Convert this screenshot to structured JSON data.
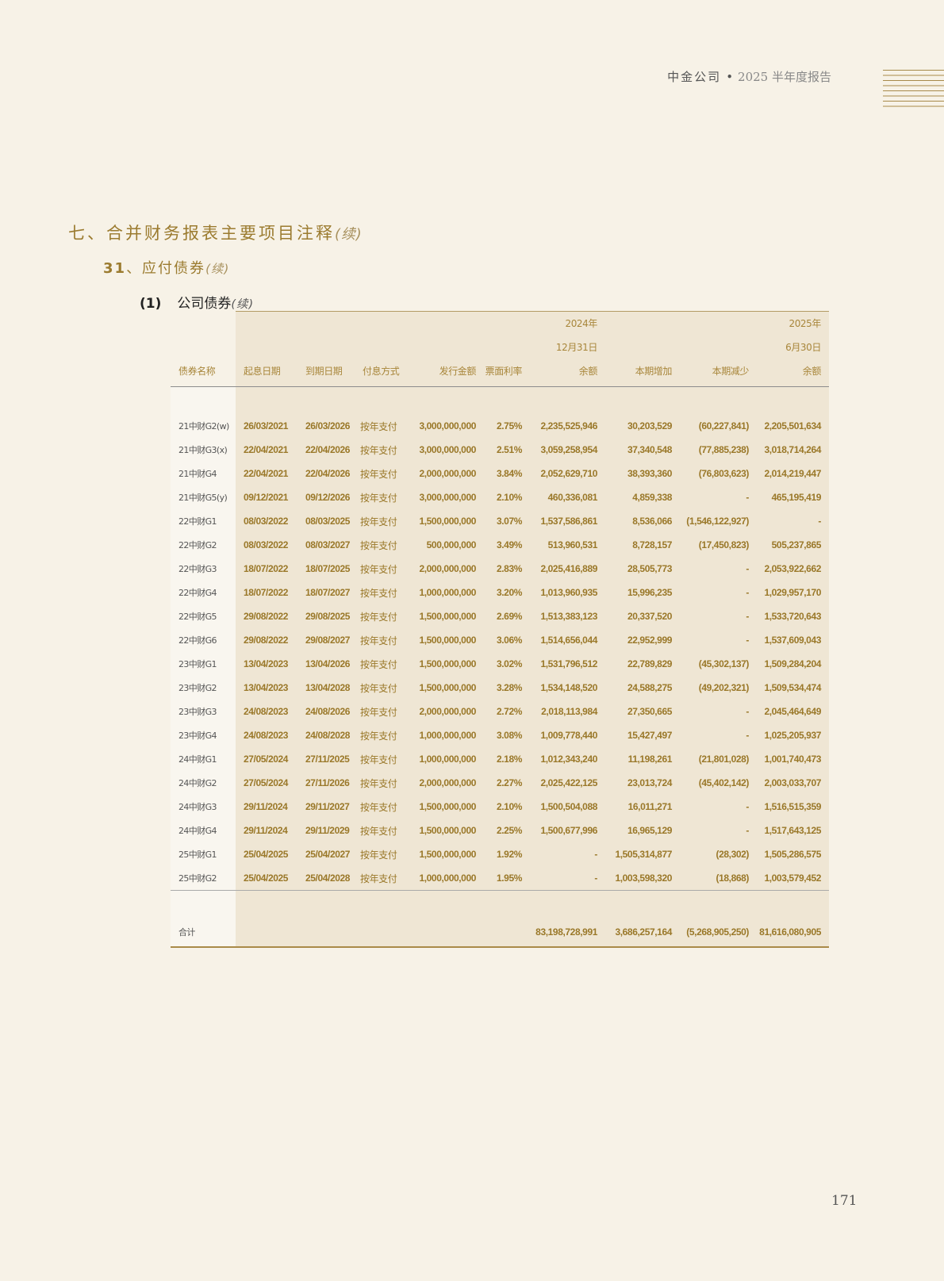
{
  "running_header": {
    "company": "中金公司",
    "separator": "•",
    "report": "2025 半年度报告"
  },
  "headings": {
    "h1": {
      "text": "七、合并财务报表主要项目注释",
      "cont": "(续)"
    },
    "h2": {
      "num": "31",
      "text": "、应付债券",
      "cont": "(续)"
    },
    "h3": {
      "num": "(1)",
      "text": "公司债券",
      "cont": "(续)"
    }
  },
  "table": {
    "headers": {
      "name": "债券名称",
      "start": "起息日期",
      "end": "到期日期",
      "method": "付息方式",
      "issue": "发行金额",
      "rate": "票面利率",
      "bal_2024": [
        "2024年",
        "12月31日",
        "余额"
      ],
      "increase": "本期增加",
      "decrease": "本期减少",
      "bal_2025": [
        "2025年",
        "6月30日",
        "余额"
      ]
    },
    "rows": [
      [
        "21中财G2(w)",
        "26/03/2021",
        "26/03/2026",
        "按年支付",
        "3,000,000,000",
        "2.75%",
        "2,235,525,946",
        "30,203,529",
        "(60,227,841)",
        "2,205,501,634"
      ],
      [
        "21中财G3(x)",
        "22/04/2021",
        "22/04/2026",
        "按年支付",
        "3,000,000,000",
        "2.51%",
        "3,059,258,954",
        "37,340,548",
        "(77,885,238)",
        "3,018,714,264"
      ],
      [
        "21中财G4",
        "22/04/2021",
        "22/04/2026",
        "按年支付",
        "2,000,000,000",
        "3.84%",
        "2,052,629,710",
        "38,393,360",
        "(76,803,623)",
        "2,014,219,447"
      ],
      [
        "21中财G5(y)",
        "09/12/2021",
        "09/12/2026",
        "按年支付",
        "3,000,000,000",
        "2.10%",
        "460,336,081",
        "4,859,338",
        "-",
        "465,195,419"
      ],
      [
        "22中财G1",
        "08/03/2022",
        "08/03/2025",
        "按年支付",
        "1,500,000,000",
        "3.07%",
        "1,537,586,861",
        "8,536,066",
        "(1,546,122,927)",
        "-"
      ],
      [
        "22中财G2",
        "08/03/2022",
        "08/03/2027",
        "按年支付",
        "500,000,000",
        "3.49%",
        "513,960,531",
        "8,728,157",
        "(17,450,823)",
        "505,237,865"
      ],
      [
        "22中财G3",
        "18/07/2022",
        "18/07/2025",
        "按年支付",
        "2,000,000,000",
        "2.83%",
        "2,025,416,889",
        "28,505,773",
        "-",
        "2,053,922,662"
      ],
      [
        "22中财G4",
        "18/07/2022",
        "18/07/2027",
        "按年支付",
        "1,000,000,000",
        "3.20%",
        "1,013,960,935",
        "15,996,235",
        "-",
        "1,029,957,170"
      ],
      [
        "22中财G5",
        "29/08/2022",
        "29/08/2025",
        "按年支付",
        "1,500,000,000",
        "2.69%",
        "1,513,383,123",
        "20,337,520",
        "-",
        "1,533,720,643"
      ],
      [
        "22中财G6",
        "29/08/2022",
        "29/08/2027",
        "按年支付",
        "1,500,000,000",
        "3.06%",
        "1,514,656,044",
        "22,952,999",
        "-",
        "1,537,609,043"
      ],
      [
        "23中财G1",
        "13/04/2023",
        "13/04/2026",
        "按年支付",
        "1,500,000,000",
        "3.02%",
        "1,531,796,512",
        "22,789,829",
        "(45,302,137)",
        "1,509,284,204"
      ],
      [
        "23中财G2",
        "13/04/2023",
        "13/04/2028",
        "按年支付",
        "1,500,000,000",
        "3.28%",
        "1,534,148,520",
        "24,588,275",
        "(49,202,321)",
        "1,509,534,474"
      ],
      [
        "23中财G3",
        "24/08/2023",
        "24/08/2026",
        "按年支付",
        "2,000,000,000",
        "2.72%",
        "2,018,113,984",
        "27,350,665",
        "-",
        "2,045,464,649"
      ],
      [
        "23中财G4",
        "24/08/2023",
        "24/08/2028",
        "按年支付",
        "1,000,000,000",
        "3.08%",
        "1,009,778,440",
        "15,427,497",
        "-",
        "1,025,205,937"
      ],
      [
        "24中财G1",
        "27/05/2024",
        "27/11/2025",
        "按年支付",
        "1,000,000,000",
        "2.18%",
        "1,012,343,240",
        "11,198,261",
        "(21,801,028)",
        "1,001,740,473"
      ],
      [
        "24中财G2",
        "27/05/2024",
        "27/11/2026",
        "按年支付",
        "2,000,000,000",
        "2.27%",
        "2,025,422,125",
        "23,013,724",
        "(45,402,142)",
        "2,003,033,707"
      ],
      [
        "24中财G3",
        "29/11/2024",
        "29/11/2027",
        "按年支付",
        "1,500,000,000",
        "2.10%",
        "1,500,504,088",
        "16,011,271",
        "-",
        "1,516,515,359"
      ],
      [
        "24中财G4",
        "29/11/2024",
        "29/11/2029",
        "按年支付",
        "1,500,000,000",
        "2.25%",
        "1,500,677,996",
        "16,965,129",
        "-",
        "1,517,643,125"
      ],
      [
        "25中财G1",
        "25/04/2025",
        "25/04/2027",
        "按年支付",
        "1,500,000,000",
        "1.92%",
        "-",
        "1,505,314,877",
        "(28,302)",
        "1,505,286,575"
      ],
      [
        "25中财G2",
        "25/04/2025",
        "25/04/2028",
        "按年支付",
        "1,000,000,000",
        "1.95%",
        "-",
        "1,003,598,320",
        "(18,868)",
        "1,003,579,452"
      ]
    ],
    "total": {
      "label": "合计",
      "bal_2024": "83,198,728,991",
      "increase": "3,686,257,164",
      "decrease": "(5,268,905,250)",
      "bal_2025": "81,616,080,905"
    }
  },
  "page_number": "171"
}
